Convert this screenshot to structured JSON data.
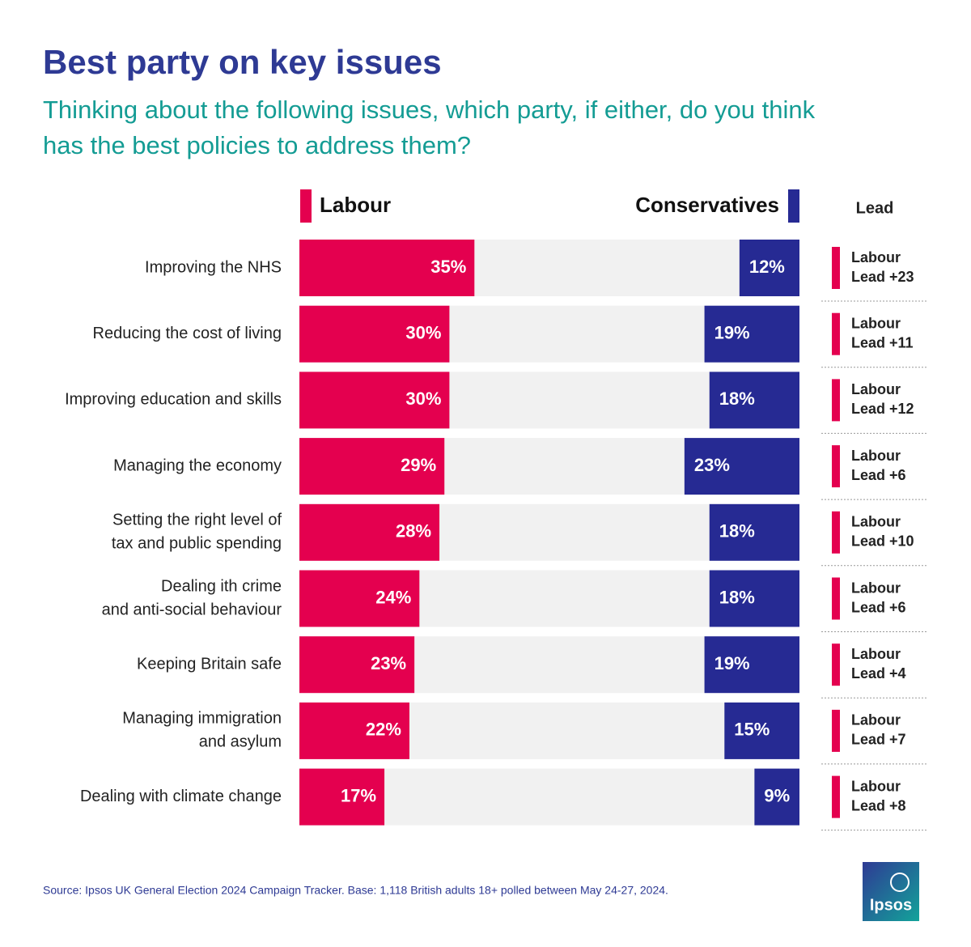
{
  "chart_data": {
    "type": "diverging-bar",
    "title": "Best party on key issues",
    "subtitle": [
      "Thinking about the following issues, which party, if either, do you think",
      "has the best policies to address them?"
    ],
    "categories": [
      [
        "Improving the NHS"
      ],
      [
        "Reducing the cost of living"
      ],
      [
        "Improving education and skills"
      ],
      [
        "Managing the economy"
      ],
      [
        "Setting the right level of",
        "tax and public spending"
      ],
      [
        "Dealing ith crime",
        "and anti-social behaviour"
      ],
      [
        "Keeping Britain safe"
      ],
      [
        "Managing immigration",
        "and asylum"
      ],
      [
        "Dealing with climate change"
      ]
    ],
    "series": [
      {
        "name": "Labour",
        "color": "#e4004f",
        "values": [
          35,
          30,
          30,
          29,
          28,
          24,
          23,
          22,
          17
        ],
        "value_labels": [
          "35%",
          "30%",
          "30%",
          "29%",
          "28%",
          "24%",
          "23%",
          "22%",
          "17%"
        ]
      },
      {
        "name": "Conservatives",
        "color": "#262a93",
        "values": [
          12,
          19,
          18,
          23,
          18,
          18,
          19,
          15,
          9
        ],
        "value_labels": [
          "12%",
          "19%",
          "18%",
          "23%",
          "18%",
          "18%",
          "19%",
          "15%",
          "9%"
        ]
      }
    ],
    "xlim": [
      0,
      100
    ],
    "track_color": "#f1f1f1",
    "lead_title": "Lead",
    "lead_labels": [
      [
        "Labour",
        "Lead +23"
      ],
      [
        "Labour",
        "Lead +11"
      ],
      [
        "Labour",
        "Lead +12"
      ],
      [
        "Labour",
        "Lead +6"
      ],
      [
        "Labour",
        "Lead +10"
      ],
      [
        "Labour",
        "Lead +6"
      ],
      [
        "Labour",
        "Lead +4"
      ],
      [
        "Labour",
        "Lead +7"
      ],
      [
        "Labour",
        "Lead +8"
      ]
    ],
    "source": "Source: Ipsos UK General Election 2024 Campaign Tracker. Base: 1,118 British adults 18+ polled between May 24-27, 2024.",
    "logo_text": "Ipsos"
  }
}
